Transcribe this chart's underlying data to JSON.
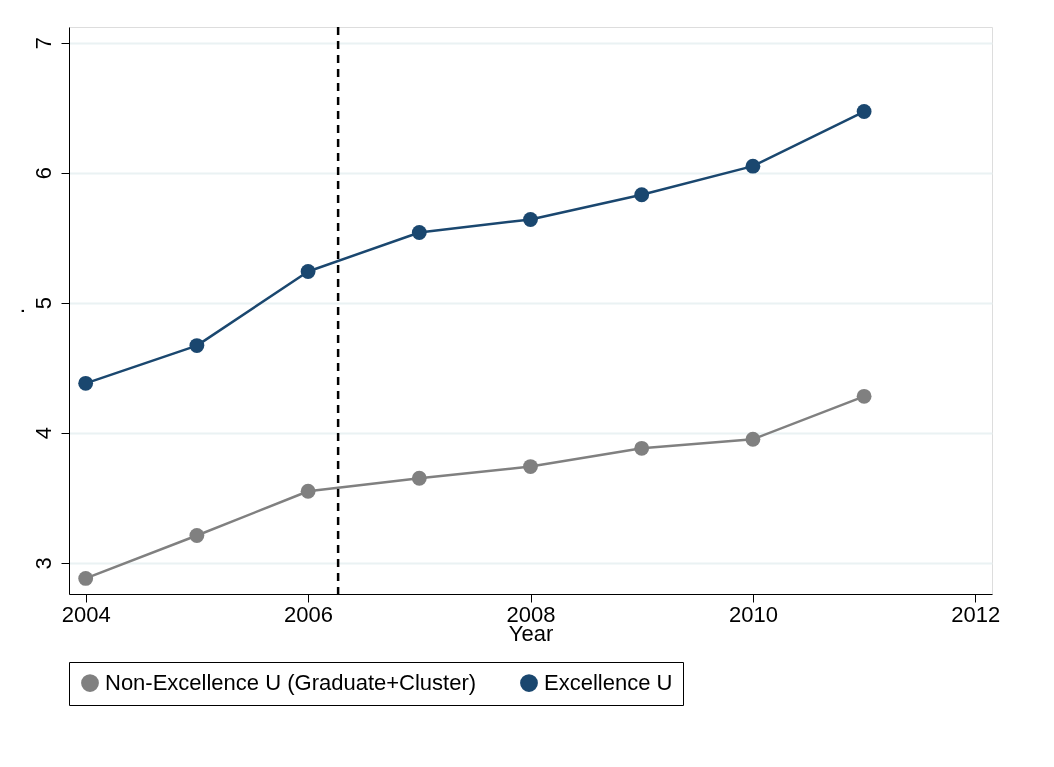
{
  "chart_data": {
    "type": "line",
    "xlabel": "Year",
    "ylabel": ".",
    "x": [
      2004,
      2005,
      2006,
      2007,
      2008,
      2009,
      2010,
      2011
    ],
    "series": [
      {
        "name": "Non-Excellence U (Graduate+Cluster)",
        "color": "#808080",
        "values": [
          2.88,
          3.21,
          3.55,
          3.65,
          3.74,
          3.88,
          3.95,
          4.28
        ]
      },
      {
        "name": "Excellence U",
        "color": "#1a476f",
        "values": [
          4.38,
          4.67,
          5.24,
          5.54,
          5.64,
          5.83,
          6.05,
          6.47
        ]
      }
    ],
    "xlim": [
      2003.85,
      2012.15
    ],
    "xticks": [
      2004,
      2006,
      2008,
      2010,
      2012
    ],
    "ylim": [
      2.76,
      7.12
    ],
    "yticks": [
      3,
      4,
      5,
      6,
      7
    ],
    "ref_lines": [
      {
        "axis": "x",
        "value": 2006.27,
        "color": "#000000",
        "line_style": "dashed"
      }
    ],
    "grid": "y",
    "legend": "bottom",
    "marker": "circle",
    "line_style": "solid"
  }
}
